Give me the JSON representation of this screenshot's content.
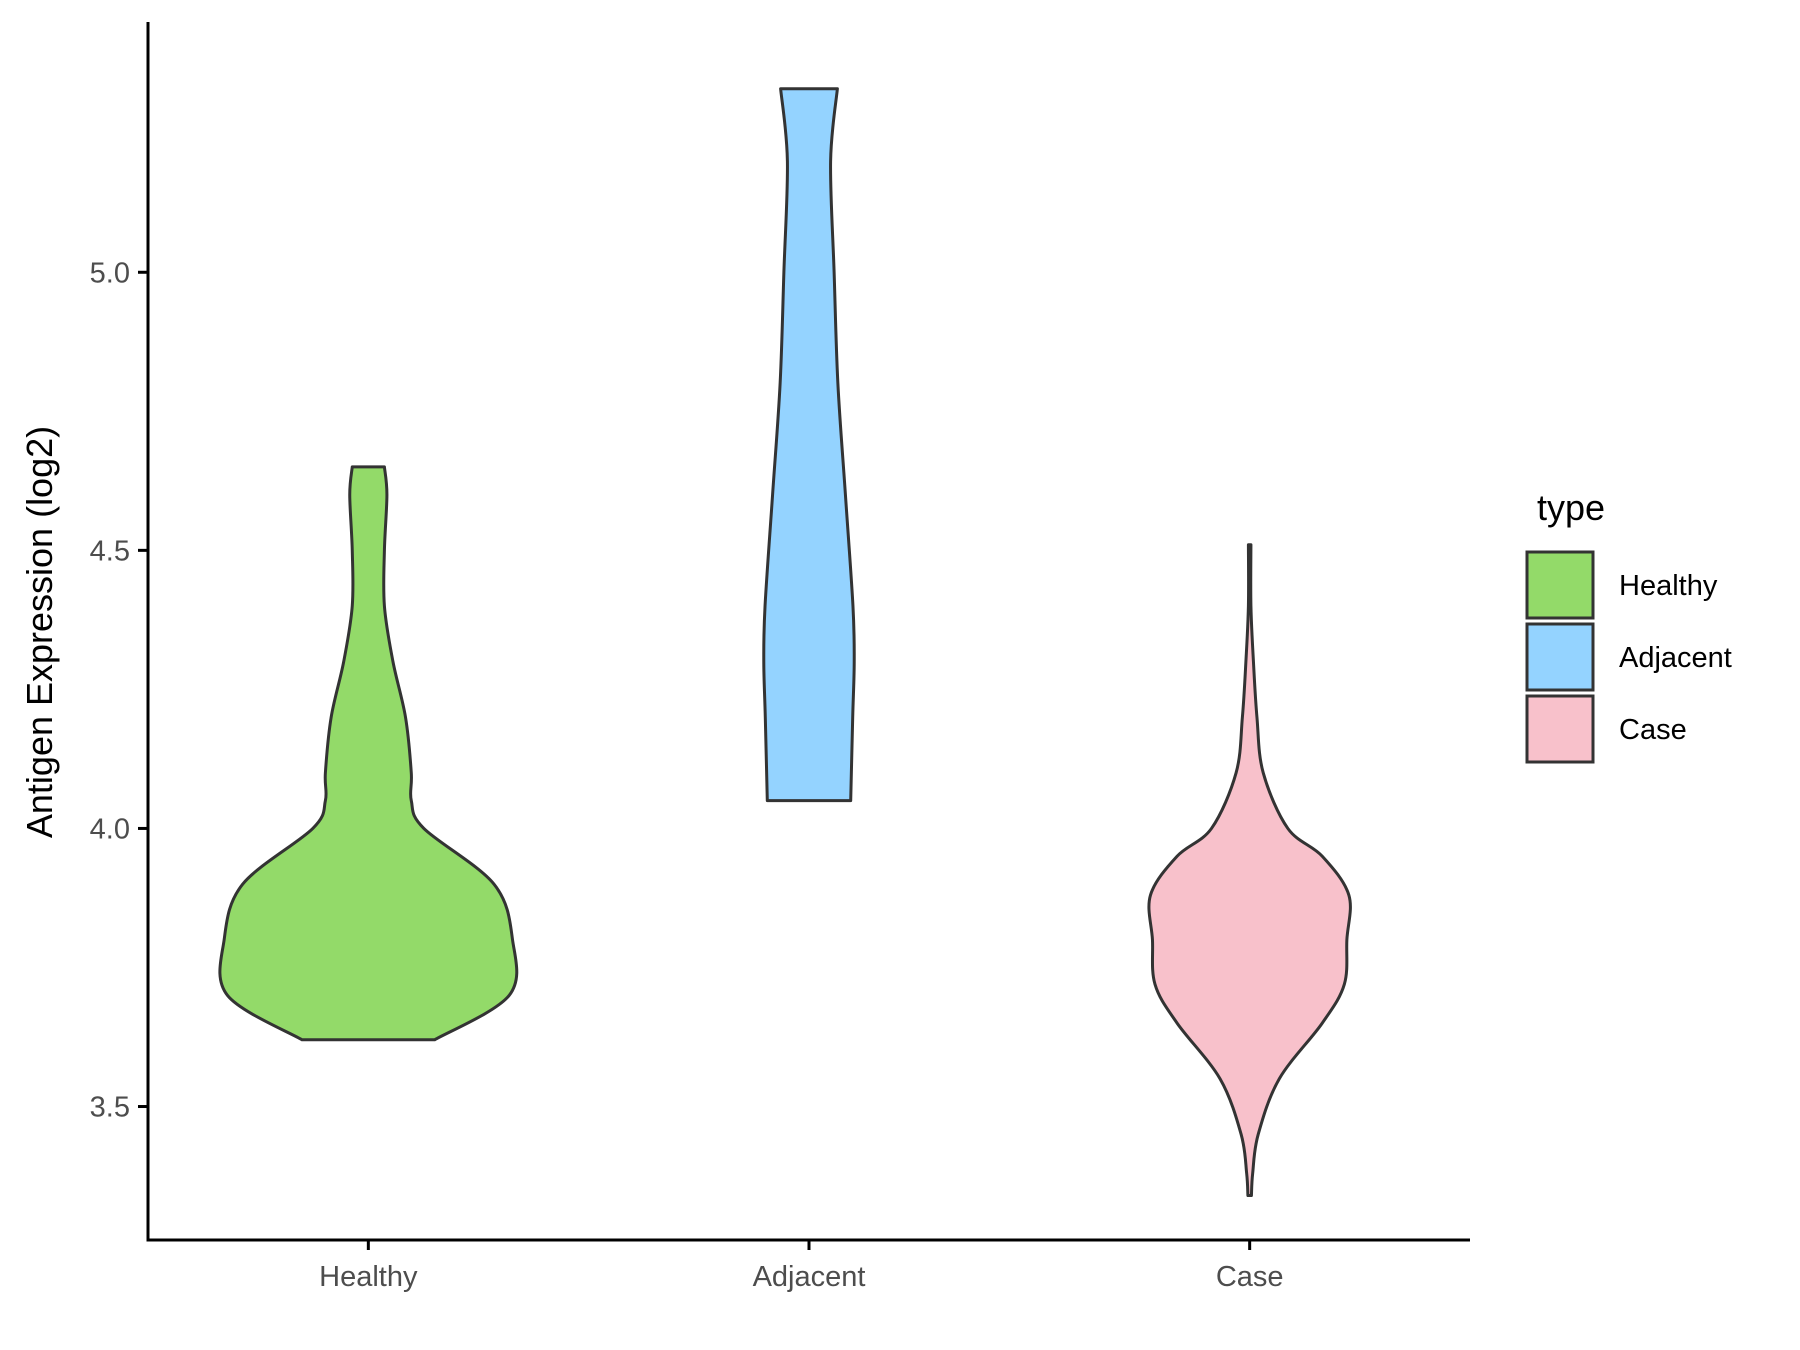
{
  "chart_data": {
    "type": "violin",
    "title": "",
    "xlabel": "",
    "ylabel": "Antigen Expression (log2)",
    "ylim": [
      3.26,
      5.45
    ],
    "yticks": [
      3.5,
      4.0,
      4.5,
      5.0
    ],
    "ytick_labels": [
      "3.5",
      "4.0",
      "4.5",
      "5.0"
    ],
    "categories": [
      "Healthy",
      "Adjacent",
      "Case"
    ],
    "grid": false,
    "legend": {
      "title": "type",
      "placement": "right",
      "entries": [
        "Healthy",
        "Adjacent",
        "Case"
      ]
    },
    "series": [
      {
        "name": "Healthy",
        "color": "#93DA69",
        "min": 3.62,
        "max": 4.65,
        "density": [
          [
            3.62,
            0.264
          ],
          [
            3.7,
            0.561
          ],
          [
            3.8,
            0.574
          ],
          [
            3.9,
            0.5
          ],
          [
            4.0,
            0.221
          ],
          [
            4.05,
            0.171
          ],
          [
            4.1,
            0.171
          ],
          [
            4.2,
            0.148
          ],
          [
            4.3,
            0.098
          ],
          [
            4.4,
            0.064
          ],
          [
            4.5,
            0.064
          ],
          [
            4.6,
            0.074
          ],
          [
            4.65,
            0.064
          ]
        ]
      },
      {
        "name": "Adjacent",
        "color": "#94D3FF",
        "min": 4.05,
        "max": 5.33,
        "density": [
          [
            4.05,
            0.166
          ],
          [
            4.2,
            0.174
          ],
          [
            4.3,
            0.18
          ],
          [
            4.4,
            0.175
          ],
          [
            4.6,
            0.145
          ],
          [
            4.8,
            0.115
          ],
          [
            5.0,
            0.1
          ],
          [
            5.2,
            0.086
          ],
          [
            5.33,
            0.113
          ]
        ]
      },
      {
        "name": "Case",
        "color": "#F8C1CB",
        "min": 3.34,
        "max": 4.51,
        "density": [
          [
            3.34,
            0.007
          ],
          [
            3.38,
            0.012
          ],
          [
            3.45,
            0.034
          ],
          [
            3.55,
            0.118
          ],
          [
            3.65,
            0.289
          ],
          [
            3.72,
            0.377
          ],
          [
            3.8,
            0.387
          ],
          [
            3.88,
            0.395
          ],
          [
            3.95,
            0.289
          ],
          [
            4.0,
            0.152
          ],
          [
            4.1,
            0.054
          ],
          [
            4.2,
            0.029
          ],
          [
            4.3,
            0.015
          ],
          [
            4.4,
            0.005
          ],
          [
            4.51,
            0.005
          ]
        ]
      }
    ]
  }
}
